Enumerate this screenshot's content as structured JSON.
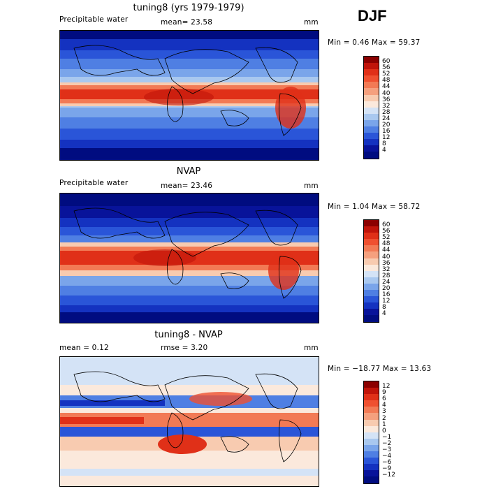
{
  "season": "DJF",
  "panels": [
    {
      "title": "tuning8 (yrs 1979-1979)",
      "left_label": "Precipitable water",
      "center_label": "mean=  23.58",
      "units": "mm",
      "minmax": "Min =    0.46 Max =  59.37",
      "colorbar_labels": [
        "60",
        "56",
        "52",
        "48",
        "44",
        "40",
        "36",
        "32",
        "28",
        "24",
        "20",
        "16",
        "12",
        "8",
        "4"
      ]
    },
    {
      "title": "NVAP",
      "left_label": "Precipitable water",
      "center_label": "mean=  23.46",
      "units": "mm",
      "minmax": "Min =    1.04 Max =  58.72",
      "colorbar_labels": [
        "60",
        "56",
        "52",
        "48",
        "44",
        "40",
        "36",
        "32",
        "28",
        "24",
        "20",
        "16",
        "12",
        "8",
        "4"
      ]
    },
    {
      "title": "tuning8 - NVAP",
      "left_label": "mean =    0.12",
      "center_label": "rmse =    3.20",
      "units": "mm",
      "minmax": "Min = −18.77 Max =  13.63",
      "colorbar_labels": [
        "12",
        "9",
        "6",
        "4",
        "3",
        "2",
        "1",
        "0",
        "−1",
        "−2",
        "−3",
        "−4",
        "−6",
        "−9",
        "−12"
      ]
    }
  ],
  "colors": {
    "abs_scale": [
      "#8b0000",
      "#c0140a",
      "#e03018",
      "#ef5030",
      "#f27a55",
      "#f5a07e",
      "#f8cbb0",
      "#fbe9dc",
      "#d4e3f6",
      "#a9c8ef",
      "#7aa5ea",
      "#4f7fe3",
      "#2a55d8",
      "#1432c0",
      "#08139a",
      "#000c80"
    ],
    "diff_scale": [
      "#8b0000",
      "#c0140a",
      "#e03018",
      "#ef5030",
      "#f27a55",
      "#f5a07e",
      "#f8cbb0",
      "#fbe9dc",
      "#d4e3f6",
      "#a9c8ef",
      "#7aa5ea",
      "#4f7fe3",
      "#2a55d8",
      "#1432c0",
      "#08139a",
      "#000c80"
    ]
  }
}
